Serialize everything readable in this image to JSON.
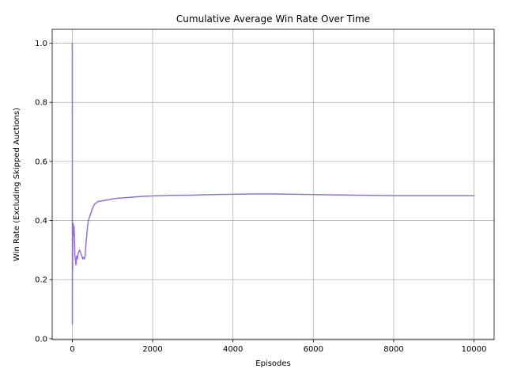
{
  "chart_data": {
    "type": "line",
    "title": "Cumulative Average Win Rate Over Time",
    "xlabel": "Episodes",
    "ylabel": "Win Rate (Excluding Skipped Auctions)",
    "xlim": [
      -500,
      10500
    ],
    "ylim": [
      -0.003,
      1.047
    ],
    "xticks": [
      0,
      2000,
      4000,
      6000,
      8000,
      10000
    ],
    "xtick_labels": [
      "0",
      "2000",
      "4000",
      "6000",
      "8000",
      "10000"
    ],
    "yticks": [
      0.0,
      0.2,
      0.4,
      0.6,
      0.8,
      1.0
    ],
    "ytick_labels": [
      "0.0",
      "0.2",
      "0.4",
      "0.6",
      "0.8",
      "1.0"
    ],
    "grid": true,
    "color": "#9370db",
    "series": [
      {
        "x": [
          1,
          2,
          3,
          5,
          8,
          12,
          18,
          25,
          35,
          45,
          55,
          65,
          75,
          90,
          110,
          130,
          150,
          180,
          210,
          240,
          260,
          280,
          300,
          320,
          340,
          360,
          380,
          400,
          450,
          500,
          550,
          600,
          650,
          700,
          800,
          900,
          1000,
          1100,
          1200,
          1400,
          1600,
          1800,
          2000,
          2200,
          2500,
          3000,
          3500,
          4000,
          4500,
          5000,
          5500,
          6000,
          6500,
          7000,
          7500,
          8000,
          8500,
          9000,
          9500,
          10000
        ],
        "y": [
          1.0,
          0.05,
          0.12,
          0.25,
          0.23,
          0.33,
          0.36,
          0.39,
          0.35,
          0.38,
          0.34,
          0.28,
          0.27,
          0.25,
          0.28,
          0.27,
          0.29,
          0.3,
          0.29,
          0.28,
          0.27,
          0.275,
          0.27,
          0.28,
          0.32,
          0.35,
          0.38,
          0.4,
          0.42,
          0.44,
          0.455,
          0.46,
          0.465,
          0.465,
          0.468,
          0.47,
          0.473,
          0.475,
          0.476,
          0.478,
          0.48,
          0.482,
          0.483,
          0.484,
          0.485,
          0.486,
          0.488,
          0.489,
          0.49,
          0.49,
          0.489,
          0.488,
          0.487,
          0.486,
          0.485,
          0.484,
          0.484,
          0.484,
          0.484,
          0.484
        ]
      }
    ]
  }
}
